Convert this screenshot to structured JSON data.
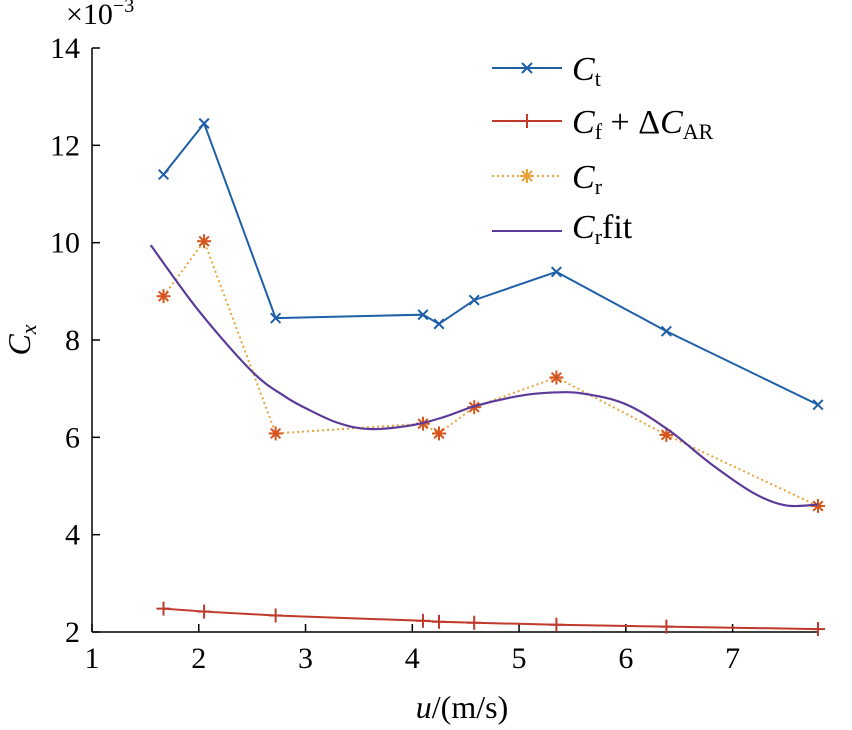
{
  "chart_data": {
    "type": "line",
    "xlabel_var": "u",
    "xlabel_unit": "/(m/s)",
    "ylabel_main": "C",
    "ylabel_sub": "x",
    "y_multiplier_base": "×10",
    "y_multiplier_exp": "−3",
    "xlim": [
      1,
      7.8
    ],
    "ylim": [
      2,
      14
    ],
    "xticks": [
      1,
      2,
      3,
      4,
      5,
      6,
      7
    ],
    "yticks": [
      2,
      4,
      6,
      8,
      10,
      12,
      14
    ],
    "grid": false,
    "legend_position": "top-right",
    "series": [
      {
        "key": "ct",
        "legend_main": "C",
        "legend_sub": "t",
        "color": "#1f5fa8",
        "marker": "x",
        "line": "solid",
        "x": [
          1.67,
          2.05,
          2.72,
          4.1,
          4.25,
          4.58,
          5.35,
          6.38,
          7.8
        ],
        "y": [
          11.4,
          12.45,
          8.45,
          8.52,
          8.33,
          8.82,
          9.4,
          8.18,
          6.67
        ]
      },
      {
        "key": "cf",
        "legend_main": "C",
        "legend_sub": "f",
        "legend_mid": " + Δ",
        "legend_main2": "C",
        "legend_sub2": "AR",
        "color": "#c0392b",
        "marker": "+",
        "line": "solid",
        "x": [
          1.67,
          2.05,
          2.72,
          4.1,
          4.25,
          4.58,
          5.35,
          6.38,
          7.8
        ],
        "y": [
          2.48,
          2.42,
          2.34,
          2.23,
          2.21,
          2.19,
          2.15,
          2.11,
          2.06
        ]
      },
      {
        "key": "cr",
        "legend_main": "C",
        "legend_sub": "r",
        "color": "#e8a33a",
        "marker_color": "#d4541c",
        "marker": "*",
        "line": "dotted",
        "x": [
          1.67,
          2.05,
          2.72,
          4.1,
          4.25,
          4.58,
          5.35,
          6.38,
          7.8
        ],
        "y": [
          8.9,
          10.03,
          6.08,
          6.28,
          6.08,
          6.62,
          7.23,
          6.05,
          4.59
        ]
      },
      {
        "key": "crfit",
        "legend_main": "C",
        "legend_sub": "r",
        "legend_suffix": "fit",
        "color": "#5b3b99",
        "marker": "none",
        "line": "solid",
        "x": [
          1.55,
          2.0,
          2.5,
          2.8,
          3.0,
          3.3,
          3.6,
          4.0,
          4.3,
          4.6,
          5.0,
          5.3,
          5.6,
          6.0,
          6.4,
          6.8,
          7.2,
          7.5,
          7.8
        ],
        "y": [
          9.95,
          8.6,
          7.35,
          6.85,
          6.6,
          6.3,
          6.17,
          6.25,
          6.42,
          6.65,
          6.85,
          6.92,
          6.9,
          6.68,
          6.15,
          5.45,
          4.85,
          4.6,
          4.62
        ]
      }
    ]
  }
}
